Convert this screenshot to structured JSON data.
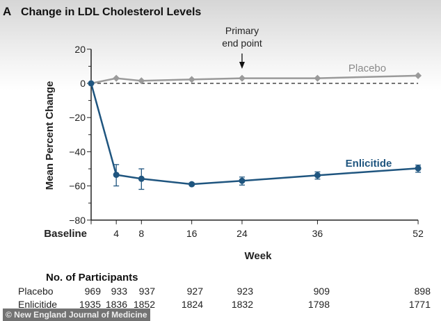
{
  "chart_data": {
    "type": "line",
    "panel_label": "A",
    "title": "Change in LDL Cholesterol Levels",
    "xlabel": "Week",
    "ylabel": "Mean Percent Change",
    "x": [
      0,
      4,
      8,
      16,
      24,
      36,
      52
    ],
    "x_tick_labels": [
      "Baseline",
      "4",
      "8",
      "16",
      "24",
      "36",
      "52"
    ],
    "ylim": [
      -80,
      20
    ],
    "y_ticks": [
      20,
      0,
      -20,
      -40,
      -60,
      -80
    ],
    "y_tick_labels": [
      "20",
      "0",
      "−20",
      "−40",
      "−60",
      "−80"
    ],
    "reference_line": {
      "y": 0,
      "style": "dashed"
    },
    "annotation": {
      "line1": "Primary",
      "line2": "end point",
      "x": 24
    },
    "series": [
      {
        "name": "Placebo",
        "color": "#9a9a9a",
        "marker": "diamond",
        "values": [
          0,
          3,
          1.5,
          2.3,
          3,
          3,
          4.5
        ]
      },
      {
        "name": "Enlicitide",
        "color": "#1f557f",
        "marker": "circle",
        "values": [
          0,
          -53.5,
          -55.8,
          -59,
          -57,
          -53.8,
          -49.7
        ],
        "error_low": [
          0,
          -60,
          -62,
          -59.8,
          -59.5,
          -56,
          -52
        ],
        "error_high": [
          0,
          -47.5,
          -50,
          -58.2,
          -54.8,
          -51.8,
          -47.8
        ]
      }
    ],
    "grid": false
  },
  "participants": {
    "heading": "No. of Participants",
    "rows": [
      {
        "label": "Placebo",
        "values": [
          "969",
          "933",
          "937",
          "927",
          "923",
          "909",
          "898"
        ]
      },
      {
        "label": "Enlicitide",
        "values": [
          "1935",
          "1836",
          "1852",
          "1824",
          "1832",
          "1798",
          "1771"
        ]
      }
    ]
  },
  "watermark": "© New England Journal of Medicine"
}
